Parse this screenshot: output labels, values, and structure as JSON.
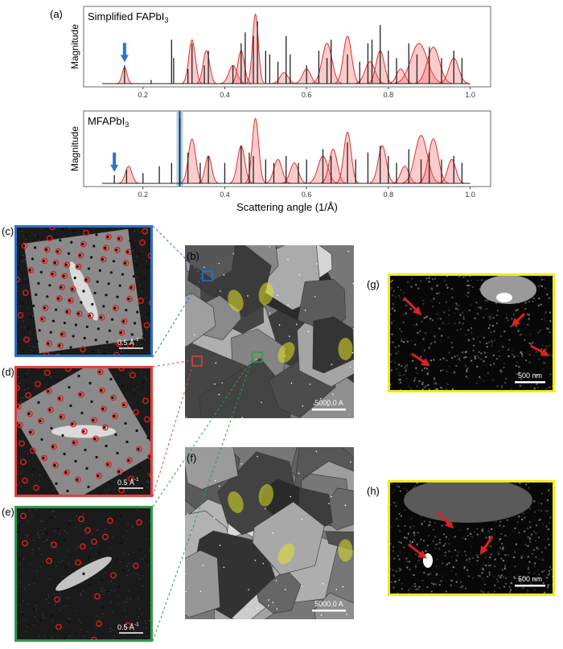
{
  "chart_data": [
    {
      "type": "stem",
      "title": {
        "text": "Simplified FAPbI",
        "sub": "3"
      },
      "y_label": "Magnitude",
      "xlim": [
        0.055,
        1.05
      ],
      "ylim": [
        0,
        1
      ],
      "xticks": [
        0.2,
        0.4,
        0.6,
        0.8,
        {
          "value": 1,
          "label": "1.0"
        }
      ],
      "arrow_x": 0.155,
      "stick_color": "#222222",
      "envelope_color": "#e03030",
      "sticks": {
        "x": [
          0.155,
          0.22,
          0.27,
          0.275,
          0.31,
          0.32,
          0.35,
          0.36,
          0.42,
          0.44,
          0.45,
          0.47,
          0.48,
          0.5,
          0.51,
          0.53,
          0.55,
          0.56,
          0.6,
          0.63,
          0.65,
          0.66,
          0.7,
          0.73,
          0.75,
          0.76,
          0.78,
          0.8,
          0.82,
          0.85,
          0.87,
          0.9,
          0.93,
          0.96,
          0.98
        ],
        "values": [
          0.25,
          0.05,
          0.6,
          0.35,
          0.2,
          0.55,
          0.25,
          0.45,
          0.25,
          0.55,
          0.7,
          0.65,
          0.85,
          0.45,
          0.4,
          0.3,
          0.65,
          0.4,
          0.25,
          0.45,
          0.35,
          0.6,
          0.4,
          0.3,
          0.55,
          0.6,
          0.8,
          0.45,
          0.35,
          0.55,
          0.4,
          0.5,
          0.35,
          0.45,
          0.35
        ]
      },
      "envelope": {
        "centers": [
          0.155,
          0.32,
          0.355,
          0.42,
          0.44,
          0.475,
          0.545,
          0.6,
          0.65,
          0.7,
          0.755,
          0.78,
          0.83,
          0.875,
          0.91,
          0.96
        ],
        "heights": [
          0.22,
          0.6,
          0.45,
          0.25,
          0.45,
          0.95,
          0.15,
          0.2,
          0.55,
          0.65,
          0.3,
          0.45,
          0.2,
          0.55,
          0.5,
          0.35
        ],
        "widths": [
          0.006,
          0.008,
          0.008,
          0.01,
          0.008,
          0.007,
          0.01,
          0.01,
          0.012,
          0.01,
          0.012,
          0.01,
          0.01,
          0.02,
          0.015,
          0.012
        ]
      }
    },
    {
      "type": "stem",
      "title": {
        "text": "MFAPbI",
        "sub": "3"
      },
      "y_label": "Magnitude",
      "x_label": "Scattering angle (1/Å)",
      "xlim": [
        0.055,
        1.05
      ],
      "ylim": [
        0,
        1
      ],
      "xticks": [
        0.2,
        0.4,
        0.6,
        0.8,
        {
          "value": 1,
          "label": "1.0"
        }
      ],
      "arrow_x": 0.13,
      "highlight_x": 0.29,
      "stick_color": "#222222",
      "envelope_color": "#e03030",
      "sticks": {
        "x": [
          0.13,
          0.16,
          0.2,
          0.24,
          0.27,
          0.29,
          0.31,
          0.34,
          0.36,
          0.4,
          0.44,
          0.46,
          0.47,
          0.5,
          0.52,
          0.55,
          0.58,
          0.6,
          0.64,
          0.66,
          0.7,
          0.72,
          0.75,
          0.78,
          0.8,
          0.82,
          0.85,
          0.88,
          0.9,
          0.93,
          0.96,
          0.98
        ],
        "values": [
          0.12,
          0.2,
          0.15,
          0.25,
          0.3,
          0.95,
          0.45,
          0.3,
          0.4,
          0.3,
          0.55,
          0.45,
          0.4,
          0.35,
          0.3,
          0.4,
          0.3,
          0.35,
          0.5,
          0.4,
          0.6,
          0.35,
          0.45,
          0.55,
          0.4,
          0.3,
          0.5,
          0.35,
          0.45,
          0.35,
          0.4,
          0.3
        ]
      },
      "envelope": {
        "centers": [
          0.165,
          0.32,
          0.36,
          0.44,
          0.475,
          0.53,
          0.57,
          0.64,
          0.665,
          0.7,
          0.785,
          0.84,
          0.88,
          0.91,
          0.955
        ],
        "heights": [
          0.25,
          0.65,
          0.4,
          0.55,
          0.95,
          0.35,
          0.3,
          0.4,
          0.5,
          0.75,
          0.55,
          0.25,
          0.7,
          0.65,
          0.35
        ],
        "widths": [
          0.008,
          0.009,
          0.008,
          0.009,
          0.008,
          0.01,
          0.01,
          0.012,
          0.01,
          0.009,
          0.01,
          0.01,
          0.015,
          0.012,
          0.01
        ]
      }
    }
  ],
  "figure": {
    "panel_a_label": "(a)",
    "b": {
      "label": "(b)",
      "scale_bar": "5000.0 A"
    },
    "c": {
      "label": "(c)",
      "scale_bar": {
        "text": "0.5 Å",
        "sup": "-1"
      }
    },
    "d": {
      "label": "(d)",
      "scale_bar": {
        "text": "0.5 Å",
        "sup": "-1"
      }
    },
    "e": {
      "label": "(e)",
      "scale_bar": {
        "text": "0.5 Å",
        "sup": "-1"
      }
    },
    "f": {
      "label": "(f)",
      "scale_bar": "5000.0 A"
    },
    "g": {
      "label": "(g)",
      "scale_bar": "500 nm"
    },
    "h": {
      "label": "(h)",
      "scale_bar": "500 nm"
    }
  }
}
